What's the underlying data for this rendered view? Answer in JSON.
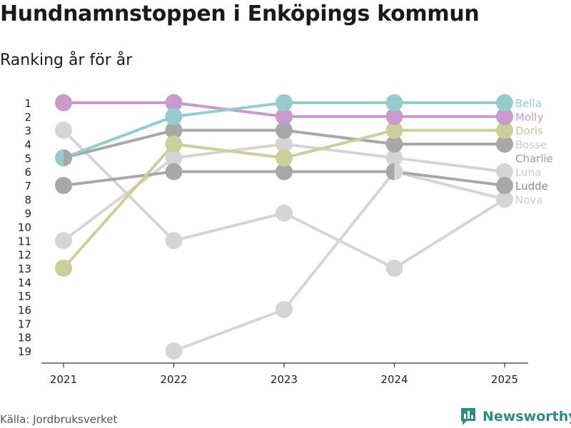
{
  "header": {
    "title": "Hundnamnstoppen i Enköpings kommun",
    "subtitle": "Ranking år för år"
  },
  "footer": {
    "source": "Källa: Jordbruksverket",
    "brand": "Newsworthy",
    "brand_icon": "bar-chart-icon",
    "brand_color": "#2e8b87"
  },
  "chart_data": {
    "type": "line",
    "title": "Hundnamnstoppen i Enköpings kommun",
    "subtitle": "Ranking år för år",
    "xlabel": "",
    "ylabel": "",
    "x": [
      "2021",
      "2022",
      "2023",
      "2024",
      "2025"
    ],
    "y_ticks": [
      "1",
      "2",
      "3",
      "4",
      "5",
      "6",
      "7",
      "8",
      "9",
      "10",
      "11",
      "12",
      "13",
      "14",
      "15",
      "16",
      "17",
      "18",
      "19"
    ],
    "ylim": [
      1,
      19
    ],
    "y_reversed": true,
    "legend": "end-labels-right",
    "series": [
      {
        "name": "Nova",
        "color": "#d5d5d5",
        "label_color": "#cccccc",
        "values": [
          null,
          19,
          16,
          6,
          8
        ]
      },
      {
        "name": "Charlie",
        "color": "#d5d5d5",
        "label_color": "#999999",
        "values": [
          3,
          11,
          9,
          13,
          8
        ]
      },
      {
        "name": "Luna",
        "color": "#d5d5d5",
        "label_color": "#cccccc",
        "values": [
          11,
          5,
          4,
          5,
          6
        ]
      },
      {
        "name": "Bosse",
        "color": "#a8a8a8",
        "label_color": "#cccccc",
        "values": [
          5,
          3,
          3,
          4,
          4
        ]
      },
      {
        "name": "Ludde",
        "color": "#a8a8a8",
        "label_color": "#888888",
        "values": [
          7,
          6,
          6,
          6,
          7
        ]
      },
      {
        "name": "Doris",
        "color": "#cdcf9a",
        "label_color": "#c8ca92",
        "values": [
          13,
          4,
          5,
          3,
          3
        ]
      },
      {
        "name": "Molly",
        "color": "#c99acc",
        "label_color": "#c99acc",
        "values": [
          1,
          1,
          2,
          2,
          2
        ]
      },
      {
        "name": "Bella",
        "color": "#96cccc",
        "label_color": "#96cccc",
        "values": [
          5,
          2,
          1,
          1,
          1
        ]
      }
    ]
  }
}
